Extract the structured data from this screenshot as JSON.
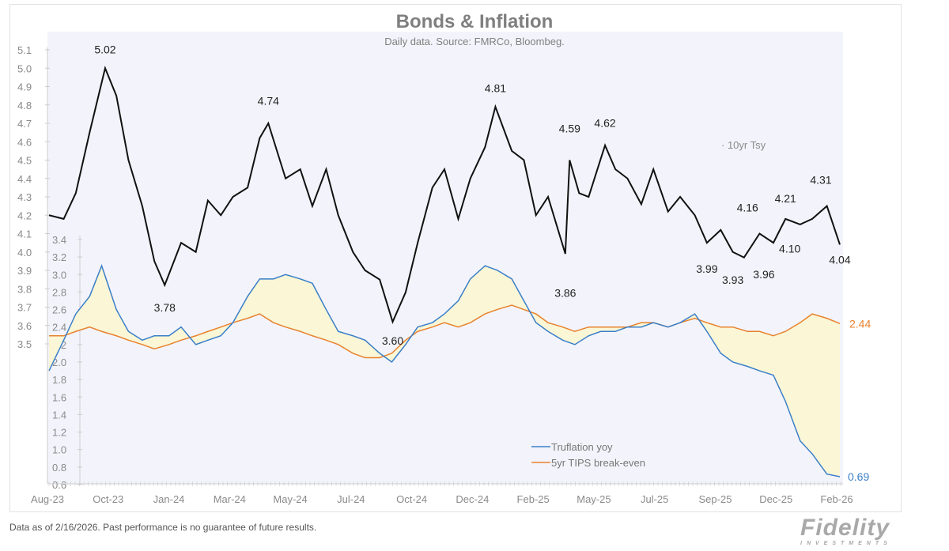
{
  "header": {
    "title": "Bonds & Inflation",
    "subtitle": "Daily data.  Source: FMRCo, Bloombeg."
  },
  "footer": {
    "disclaimer": "Data as of 2/16/2026. Past performance is no guarantee of future results.",
    "logo_text": "Fidelity",
    "logo_subtext": "INVESTMENTS"
  },
  "chart_data": {
    "type": "line",
    "x_tick_labels": [
      "Aug-23",
      "Oct-23",
      "Jan-24",
      "Mar-24",
      "May-24",
      "Jul-24",
      "Oct-24",
      "Dec-24",
      "Feb-25",
      "May-25",
      "Jul-25",
      "Sep-25",
      "Dec-25",
      "Feb-26"
    ],
    "x_range": [
      "2023-08-15",
      "2026-02-16"
    ],
    "left_axis": {
      "range": [
        3.5,
        5.1
      ],
      "ticks": [
        "5.1",
        "5.0",
        "4.9",
        "4.8",
        "4.7",
        "4.6",
        "4.5",
        "4.4",
        "4.3",
        "4.2",
        "4.1",
        "4.0",
        "3.9",
        "3.8",
        "3.7",
        "3.6",
        "3.5"
      ]
    },
    "inner_axis": {
      "range": [
        0.6,
        3.4
      ],
      "ticks": [
        "3.4",
        "3.2",
        "3.0",
        "2.8",
        "2.6",
        "2.4",
        "2.2",
        "2.0",
        "1.8",
        "1.6",
        "1.4",
        "1.2",
        "1.0",
        "0.8",
        "0.6"
      ]
    },
    "colors": {
      "tsy": "#111111",
      "truflation": "#3a7fc8",
      "breakeven": "#e8822e",
      "fill": "#faf6d6",
      "plot_bg": "#f3f4fb",
      "axis_text": "#8a8a8a"
    },
    "tsy_series": {
      "name": "10yr Tsy",
      "axis": "left",
      "dates": [
        "2023-08-15",
        "2023-09-01",
        "2023-09-15",
        "2023-10-01",
        "2023-10-19",
        "2023-11-01",
        "2023-11-15",
        "2023-12-01",
        "2023-12-15",
        "2023-12-27",
        "2024-01-15",
        "2024-02-01",
        "2024-02-15",
        "2024-03-01",
        "2024-03-15",
        "2024-04-01",
        "2024-04-15",
        "2024-04-25",
        "2024-05-15",
        "2024-06-01",
        "2024-06-15",
        "2024-07-01",
        "2024-07-15",
        "2024-08-01",
        "2024-08-15",
        "2024-09-01",
        "2024-09-16",
        "2024-10-01",
        "2024-10-15",
        "2024-11-01",
        "2024-11-15",
        "2024-12-01",
        "2024-12-15",
        "2025-01-01",
        "2025-01-13",
        "2025-02-01",
        "2025-02-15",
        "2025-03-01",
        "2025-03-15",
        "2025-04-04",
        "2025-04-09",
        "2025-04-20",
        "2025-05-01",
        "2025-05-20",
        "2025-06-01",
        "2025-06-15",
        "2025-07-01",
        "2025-07-15",
        "2025-08-01",
        "2025-08-15",
        "2025-09-01",
        "2025-09-15",
        "2025-10-01",
        "2025-10-15",
        "2025-10-28",
        "2025-11-15",
        "2025-12-01",
        "2025-12-15",
        "2026-01-01",
        "2026-01-15",
        "2026-02-01",
        "2026-02-16"
      ],
      "values": [
        4.2,
        4.18,
        4.32,
        4.65,
        5.0,
        4.85,
        4.5,
        4.25,
        3.95,
        3.82,
        4.05,
        4.0,
        4.28,
        4.2,
        4.3,
        4.35,
        4.62,
        4.7,
        4.4,
        4.45,
        4.25,
        4.45,
        4.2,
        4.0,
        3.9,
        3.85,
        3.62,
        3.78,
        4.05,
        4.35,
        4.45,
        4.18,
        4.4,
        4.57,
        4.79,
        4.55,
        4.5,
        4.2,
        4.3,
        3.99,
        4.5,
        4.32,
        4.3,
        4.58,
        4.45,
        4.4,
        4.26,
        4.45,
        4.22,
        4.3,
        4.2,
        4.05,
        4.12,
        4.0,
        3.97,
        4.1,
        4.05,
        4.18,
        4.15,
        4.18,
        4.25,
        4.04
      ]
    },
    "inflation_dates": [
      "2023-08-15",
      "2023-09-01",
      "2023-09-15",
      "2023-10-01",
      "2023-10-15",
      "2023-11-01",
      "2023-11-15",
      "2023-12-01",
      "2023-12-15",
      "2024-01-01",
      "2024-01-15",
      "2024-02-01",
      "2024-02-15",
      "2024-03-01",
      "2024-03-15",
      "2024-04-01",
      "2024-04-15",
      "2024-05-01",
      "2024-05-15",
      "2024-06-01",
      "2024-06-15",
      "2024-07-01",
      "2024-07-15",
      "2024-08-01",
      "2024-08-15",
      "2024-09-01",
      "2024-09-15",
      "2024-10-01",
      "2024-10-15",
      "2024-11-01",
      "2024-11-15",
      "2024-12-01",
      "2024-12-15",
      "2025-01-01",
      "2025-01-15",
      "2025-02-01",
      "2025-02-15",
      "2025-03-01",
      "2025-03-15",
      "2025-04-01",
      "2025-04-15",
      "2025-05-01",
      "2025-05-15",
      "2025-06-01",
      "2025-06-15",
      "2025-07-01",
      "2025-07-15",
      "2025-08-01",
      "2025-08-15",
      "2025-09-01",
      "2025-09-15",
      "2025-10-01",
      "2025-10-15",
      "2025-11-01",
      "2025-11-15",
      "2025-12-01",
      "2025-12-15",
      "2026-01-01",
      "2026-01-15",
      "2026-02-01",
      "2026-02-16"
    ],
    "series": [
      {
        "name": "Truflation yoy",
        "axis": "inner",
        "values": [
          1.9,
          2.25,
          2.55,
          2.75,
          3.1,
          2.6,
          2.35,
          2.25,
          2.3,
          2.3,
          2.4,
          2.2,
          2.25,
          2.3,
          2.45,
          2.75,
          2.95,
          2.95,
          3.0,
          2.95,
          2.9,
          2.6,
          2.35,
          2.3,
          2.25,
          2.1,
          2.0,
          2.2,
          2.4,
          2.45,
          2.55,
          2.7,
          2.95,
          3.1,
          3.05,
          2.95,
          2.7,
          2.45,
          2.35,
          2.25,
          2.2,
          2.3,
          2.35,
          2.35,
          2.4,
          2.4,
          2.45,
          2.4,
          2.45,
          2.55,
          2.35,
          2.1,
          2.0,
          1.95,
          1.9,
          1.85,
          1.55,
          1.1,
          0.95,
          0.72,
          0.69
        ]
      },
      {
        "name": "5yr TIPS break-even",
        "axis": "inner",
        "values": [
          2.3,
          2.3,
          2.35,
          2.4,
          2.35,
          2.3,
          2.25,
          2.2,
          2.15,
          2.2,
          2.25,
          2.3,
          2.35,
          2.4,
          2.45,
          2.5,
          2.55,
          2.45,
          2.4,
          2.35,
          2.3,
          2.25,
          2.2,
          2.1,
          2.05,
          2.05,
          2.1,
          2.25,
          2.35,
          2.4,
          2.45,
          2.4,
          2.45,
          2.55,
          2.6,
          2.65,
          2.6,
          2.55,
          2.45,
          2.4,
          2.35,
          2.4,
          2.4,
          2.4,
          2.4,
          2.45,
          2.45,
          2.4,
          2.45,
          2.5,
          2.45,
          2.4,
          2.4,
          2.35,
          2.35,
          2.3,
          2.35,
          2.45,
          2.55,
          2.5,
          2.44
        ]
      }
    ],
    "tsy_annotations": [
      {
        "date": "2023-10-19",
        "value": 5.02,
        "label": "5.02",
        "pos": "above"
      },
      {
        "date": "2023-12-27",
        "value": 3.78,
        "label": "3.78",
        "pos": "below"
      },
      {
        "date": "2024-04-25",
        "value": 4.74,
        "label": "4.74",
        "pos": "above"
      },
      {
        "date": "2024-09-16",
        "value": 3.6,
        "label": "3.60",
        "pos": "below"
      },
      {
        "date": "2025-01-13",
        "value": 4.81,
        "label": "4.81",
        "pos": "above"
      },
      {
        "date": "2025-04-04",
        "value": 3.86,
        "label": "3.86",
        "pos": "below"
      },
      {
        "date": "2025-04-09",
        "value": 4.59,
        "label": "4.59",
        "pos": "above"
      },
      {
        "date": "2025-05-20",
        "value": 4.62,
        "label": "4.62",
        "pos": "above"
      },
      {
        "date": "2025-09-15",
        "value": 3.99,
        "label": "3.99",
        "pos": "below"
      },
      {
        "date": "2025-10-15",
        "value": 3.93,
        "label": "3.93",
        "pos": "below"
      },
      {
        "date": "2025-11-01",
        "value": 4.16,
        "label": "4.16",
        "pos": "above"
      },
      {
        "date": "2025-11-20",
        "value": 3.96,
        "label": "3.96",
        "pos": "below"
      },
      {
        "date": "2025-12-15",
        "value": 4.21,
        "label": "4.21",
        "pos": "above"
      },
      {
        "date": "2025-12-20",
        "value": 4.1,
        "label": "4.10",
        "pos": "below"
      },
      {
        "date": "2026-01-25",
        "value": 4.31,
        "label": "4.31",
        "pos": "above"
      },
      {
        "date": "2026-02-16",
        "value": 4.04,
        "label": "4.04",
        "pos": "below"
      }
    ],
    "end_labels": {
      "breakeven": "2.44",
      "truflation": "0.69"
    },
    "legend": {
      "placement": "bottom-center",
      "items": [
        "Truflation yoy",
        "5yr TIPS break-even"
      ],
      "tsy_label": "10yr Tsy"
    }
  }
}
